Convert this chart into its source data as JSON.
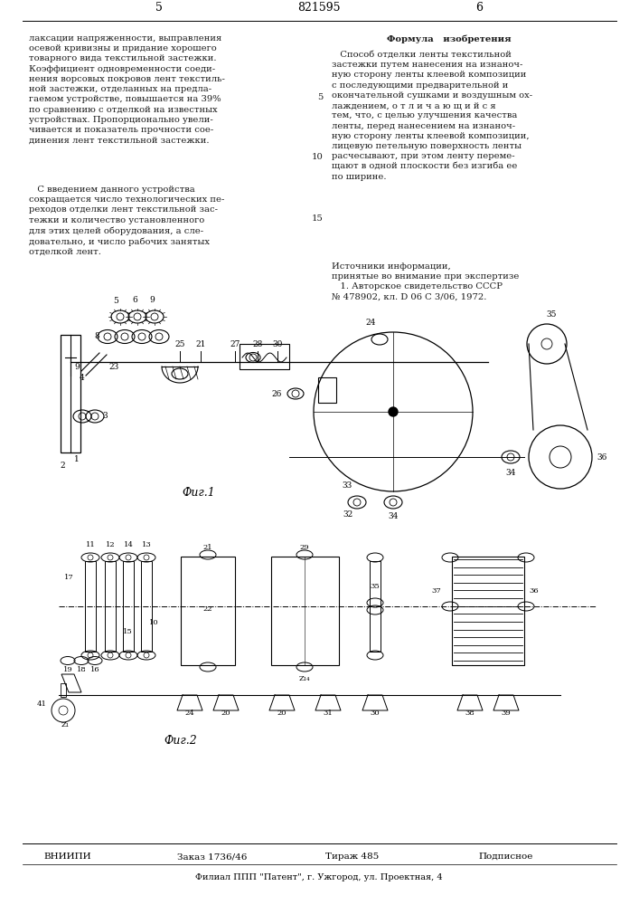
{
  "page_num_left": "5",
  "patent_num": "821595",
  "page_num_right": "6",
  "col_right_title": "Формула   изобретения",
  "fig1_label": "Фиг.1",
  "fig2_label": "Фиг.2",
  "footer_org": "ВНИИПИ",
  "footer_order": "Заказ 1736/46",
  "footer_circulation": "Тираж 485",
  "footer_subscription": "Подписное",
  "footer_address": "Филиал ППП \"Патент\", г. Ужгород, ул. Проектная, 4",
  "bg_color": "#ffffff",
  "text_color": "#1a1a1a",
  "font_size_body": 7.2,
  "font_size_header": 8.0
}
